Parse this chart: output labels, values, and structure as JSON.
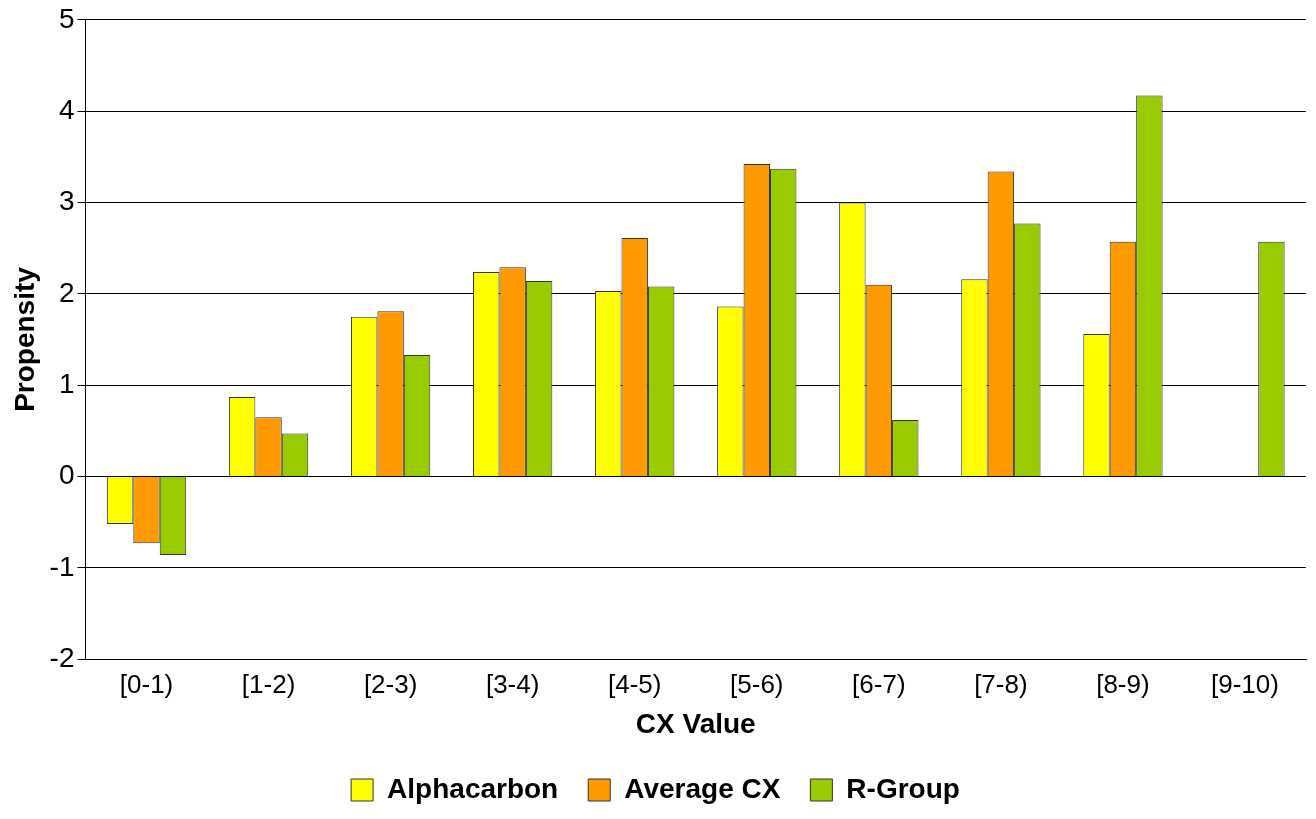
{
  "chart_data": {
    "type": "bar",
    "xlabel": "CX Value",
    "ylabel": "Propensity",
    "categories": [
      "[0-1)",
      "[1-2)",
      "[2-3)",
      "[3-4)",
      "[4-5)",
      "[5-6)",
      "[6-7)",
      "[7-8)",
      "[8-9)",
      "[9-10)"
    ],
    "series": [
      {
        "name": "Alphacarbon",
        "color": "#ffff00",
        "values": [
          -0.52,
          0.87,
          1.75,
          2.24,
          2.03,
          1.86,
          3.0,
          2.16,
          1.56,
          null
        ]
      },
      {
        "name": "Average CX",
        "color": "#ff9900",
        "values": [
          -0.73,
          0.65,
          1.81,
          2.29,
          2.61,
          3.42,
          2.1,
          3.34,
          2.57,
          null
        ]
      },
      {
        "name": "R-Group",
        "color": "#99cc00",
        "values": [
          -0.86,
          0.47,
          1.33,
          2.14,
          2.08,
          3.37,
          0.62,
          2.77,
          4.17,
          2.57
        ]
      }
    ],
    "ylim": [
      -2,
      5
    ],
    "yticks": [
      -2,
      -1,
      0,
      1,
      2,
      3,
      4,
      5
    ],
    "grid": "y",
    "legend": "bottom"
  }
}
